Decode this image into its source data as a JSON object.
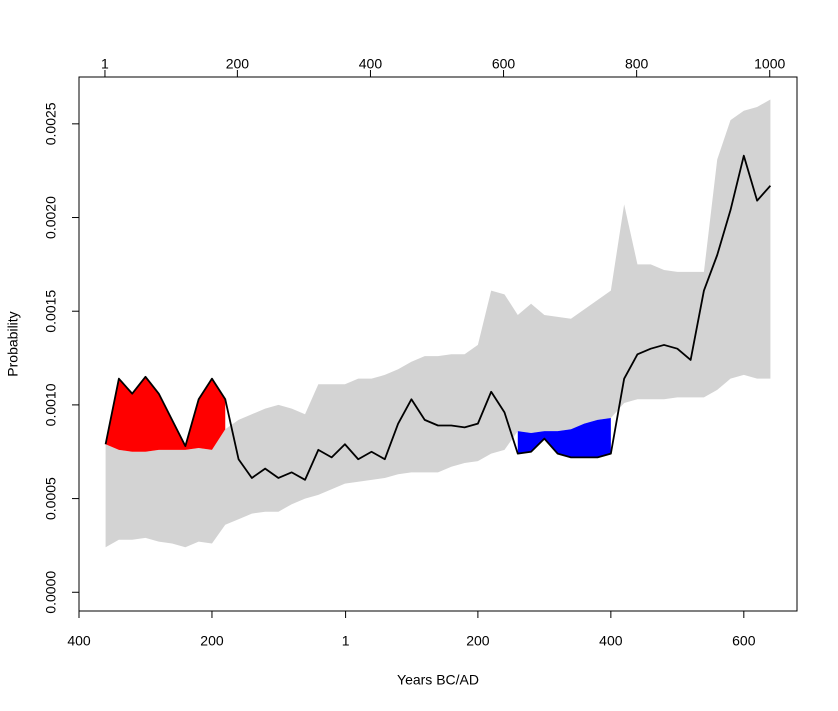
{
  "chart_data": {
    "type": "line",
    "xlabel": "Years BC/AD",
    "ylabel": "Probability",
    "x": [
      -360,
      -340,
      -320,
      -300,
      -280,
      -260,
      -240,
      -220,
      -200,
      -180,
      -160,
      -140,
      -120,
      -100,
      -80,
      -60,
      -40,
      -20,
      0,
      20,
      40,
      60,
      80,
      100,
      120,
      140,
      160,
      180,
      200,
      220,
      240,
      260,
      280,
      300,
      320,
      340,
      360,
      380,
      400,
      420,
      440,
      460,
      480,
      500,
      520,
      540,
      560,
      580,
      600,
      620,
      640
    ],
    "values": [
      0.00079,
      0.00114,
      0.00106,
      0.00115,
      0.00106,
      0.00092,
      0.00078,
      0.00103,
      0.00114,
      0.00103,
      0.00071,
      0.00061,
      0.00066,
      0.00061,
      0.00064,
      0.0006,
      0.00076,
      0.00072,
      0.00079,
      0.00071,
      0.00075,
      0.00071,
      0.0009,
      0.00103,
      0.00092,
      0.00089,
      0.00089,
      0.00088,
      0.0009,
      0.00107,
      0.00096,
      0.00074,
      0.00075,
      0.00082,
      0.00074,
      0.00072,
      0.00072,
      0.00072,
      0.00074,
      0.00114,
      0.00127,
      0.0013,
      0.00132,
      0.0013,
      0.00124,
      0.00161,
      0.0018,
      0.00204,
      0.00233,
      0.00209,
      0.00217
    ],
    "line_color": "#000000",
    "envelope": {
      "color": "#d3d3d3",
      "upper": [
        0.00079,
        0.00076,
        0.00075,
        0.00075,
        0.00076,
        0.00076,
        0.00076,
        0.00077,
        0.00076,
        0.00087,
        0.00092,
        0.00095,
        0.00098,
        0.001,
        0.00098,
        0.00095,
        0.00111,
        0.00111,
        0.00111,
        0.00114,
        0.00114,
        0.00116,
        0.00119,
        0.00123,
        0.00126,
        0.00126,
        0.00127,
        0.00127,
        0.00132,
        0.00161,
        0.00159,
        0.00148,
        0.00154,
        0.00148,
        0.00147,
        0.00146,
        0.00151,
        0.00156,
        0.00161,
        0.00207,
        0.00175,
        0.00175,
        0.00172,
        0.00171,
        0.00171,
        0.00171,
        0.00231,
        0.00252,
        0.00257,
        0.00259,
        0.00263
      ],
      "lower": [
        0.00024,
        0.00028,
        0.00028,
        0.00029,
        0.00027,
        0.00026,
        0.00024,
        0.00027,
        0.00026,
        0.00036,
        0.00039,
        0.00042,
        0.00043,
        0.00043,
        0.00047,
        0.0005,
        0.00052,
        0.00055,
        0.00058,
        0.00059,
        0.0006,
        0.00061,
        0.00063,
        0.00064,
        0.00064,
        0.00064,
        0.00067,
        0.00069,
        0.0007,
        0.00074,
        0.00076,
        0.00086,
        0.00085,
        0.00086,
        0.00086,
        0.00087,
        0.0009,
        0.00092,
        0.00093,
        0.00101,
        0.00103,
        0.00103,
        0.00103,
        0.00104,
        0.00104,
        0.00104,
        0.00108,
        0.00114,
        0.00116,
        0.00114,
        0.00114
      ]
    },
    "above_color": "#ff0000",
    "below_color": "#0000ff",
    "xlim": [
      -400,
      680
    ],
    "xticks": [
      {
        "value": -400,
        "label": "400"
      },
      {
        "value": -200,
        "label": "200"
      },
      1,
      200,
      400,
      600
    ],
    "x2lim": [
      -38,
      1041
    ],
    "x2ticks": [
      1,
      200,
      400,
      600,
      800,
      1000
    ],
    "ylim": [
      -0.0001,
      0.00275
    ],
    "yticks": [
      {
        "value": 0,
        "label": "0.0000"
      },
      {
        "value": 0.0005,
        "label": "0.0005"
      },
      {
        "value": 0.001,
        "label": "0.0010"
      },
      {
        "value": 0.0015,
        "label": "0.0015"
      },
      {
        "value": 0.002,
        "label": "0.0020"
      },
      {
        "value": 0.0025,
        "label": "0.0025"
      }
    ]
  }
}
